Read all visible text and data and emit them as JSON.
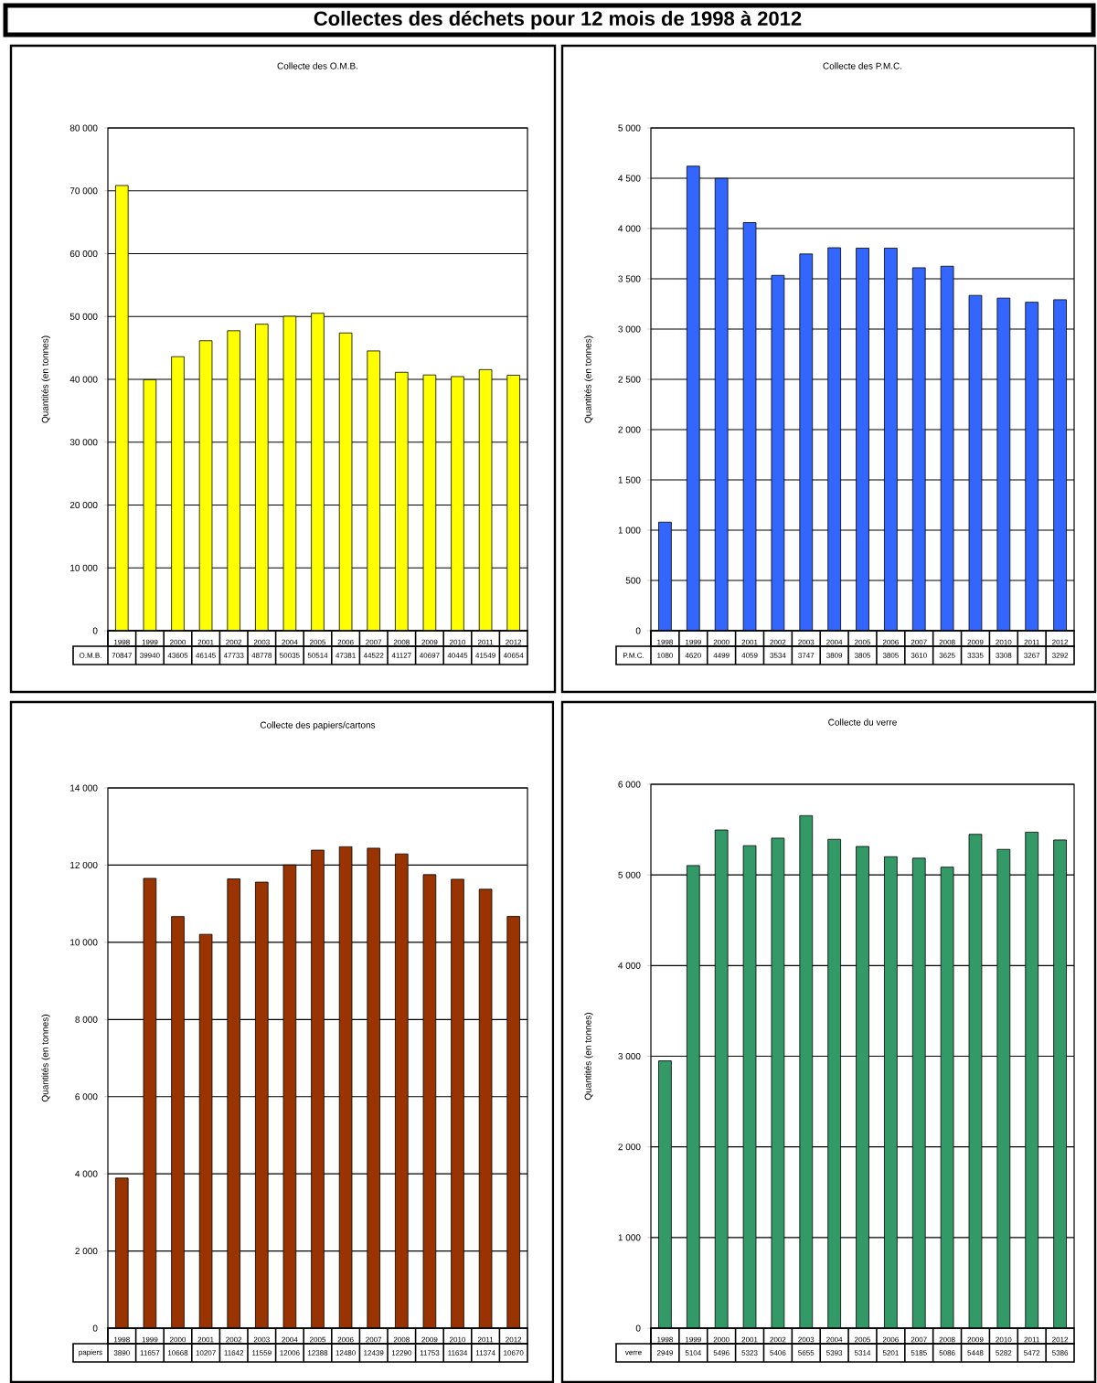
{
  "chart_data": [
    {
      "type": "other",
      "title": "Collectes des déchets pour 12 mois de 1998 à 2012"
    },
    {
      "type": "bar",
      "title": "Collecte des O.M.B.",
      "ylabel": "Quantités (en tonnes)",
      "categories": [
        "1998",
        "1999",
        "2000",
        "2001",
        "2002",
        "2003",
        "2004",
        "2005",
        "2006",
        "2007",
        "2008",
        "2009",
        "2010",
        "2011",
        "2012"
      ],
      "series": [
        {
          "name": "O.M.B.",
          "color": "#ffff00",
          "values": [
            70847,
            39940,
            43605,
            46145,
            47733,
            48778,
            50035,
            50514,
            47381,
            44522,
            41127,
            40697,
            40445,
            41549,
            40654
          ]
        }
      ],
      "ylim": [
        0,
        80000
      ],
      "yticks": [
        0,
        {
          "value": 10000,
          "label": "10 000"
        },
        {
          "value": 20000,
          "label": "20 000"
        },
        {
          "value": 30000,
          "label": "30 000"
        },
        {
          "value": 40000,
          "label": "40 000"
        },
        {
          "value": 50000,
          "label": "50 000"
        },
        {
          "value": 60000,
          "label": "60 000"
        },
        {
          "value": 70000,
          "label": "70 000"
        },
        {
          "value": 80000,
          "label": "80 000"
        }
      ],
      "grid": "y",
      "data_labels": true
    },
    {
      "type": "bar",
      "title": "Collecte des P.M.C.",
      "ylabel": "Quantités (en tonnes)",
      "categories": [
        "1998",
        "1999",
        "2000",
        "2001",
        "2002",
        "2003",
        "2004",
        "2005",
        "2006",
        "2007",
        "2008",
        "2009",
        "2010",
        "2011",
        "2012"
      ],
      "series": [
        {
          "name": "P.M.C.",
          "color": "#3366ff",
          "values": [
            1080,
            4620,
            4499,
            4059,
            3534,
            3747,
            3809,
            3805,
            3805,
            3610,
            3625,
            3335,
            3308,
            3267,
            3292
          ]
        }
      ],
      "ylim": [
        0,
        5000
      ],
      "yticks": [
        0,
        500,
        {
          "value": 1000,
          "label": "1 000"
        },
        {
          "value": 1500,
          "label": "1 500"
        },
        {
          "value": 2000,
          "label": "2 000"
        },
        {
          "value": 2500,
          "label": "2 500"
        },
        {
          "value": 3000,
          "label": "3 000"
        },
        {
          "value": 3500,
          "label": "3 500"
        },
        {
          "value": 4000,
          "label": "4 000"
        },
        {
          "value": 4500,
          "label": "4 500"
        },
        {
          "value": 5000,
          "label": "5 000"
        }
      ],
      "grid": "y",
      "data_labels": true
    },
    {
      "type": "bar",
      "title": "Collecte des papiers/cartons",
      "ylabel": "Quantités (en tonnes)",
      "categories": [
        "1998",
        "1999",
        "2000",
        "2001",
        "2002",
        "2003",
        "2004",
        "2005",
        "2006",
        "2007",
        "2008",
        "2009",
        "2010",
        "2011",
        "2012"
      ],
      "series": [
        {
          "name": "papiers",
          "color": "#993300",
          "values": [
            3890,
            11657,
            10668,
            10207,
            11642,
            11559,
            12006,
            12388,
            12480,
            12439,
            12290,
            11753,
            11634,
            11374,
            10670
          ]
        }
      ],
      "ylim": [
        0,
        14000
      ],
      "yticks": [
        0,
        {
          "value": 2000,
          "label": "2 000"
        },
        {
          "value": 4000,
          "label": "4 000"
        },
        {
          "value": 6000,
          "label": "6 000"
        },
        {
          "value": 8000,
          "label": "8 000"
        },
        {
          "value": 10000,
          "label": "10 000"
        },
        {
          "value": 12000,
          "label": "12 000"
        },
        {
          "value": 14000,
          "label": "14 000"
        }
      ],
      "grid": "y",
      "data_labels": true
    },
    {
      "type": "bar",
      "title": "Collecte du verre",
      "ylabel": "Quantités (en tonnes)",
      "categories": [
        "1998",
        "1999",
        "2000",
        "2001",
        "2002",
        "2003",
        "2004",
        "2005",
        "2006",
        "2007",
        "2008",
        "2009",
        "2010",
        "2011",
        "2012"
      ],
      "series": [
        {
          "name": "verre",
          "color": "#339966",
          "values": [
            2949,
            5104,
            5496,
            5323,
            5406,
            5655,
            5393,
            5314,
            5201,
            5185,
            5086,
            5448,
            5282,
            5472,
            5386
          ]
        }
      ],
      "ylim": [
        0,
        6000
      ],
      "yticks": [
        0,
        {
          "value": 1000,
          "label": "1 000"
        },
        {
          "value": 2000,
          "label": "2 000"
        },
        {
          "value": 3000,
          "label": "3 000"
        },
        {
          "value": 4000,
          "label": "4 000"
        },
        {
          "value": 5000,
          "label": "5 000"
        },
        {
          "value": 6000,
          "label": "6 000"
        }
      ],
      "grid": "y",
      "data_labels": true
    }
  ]
}
